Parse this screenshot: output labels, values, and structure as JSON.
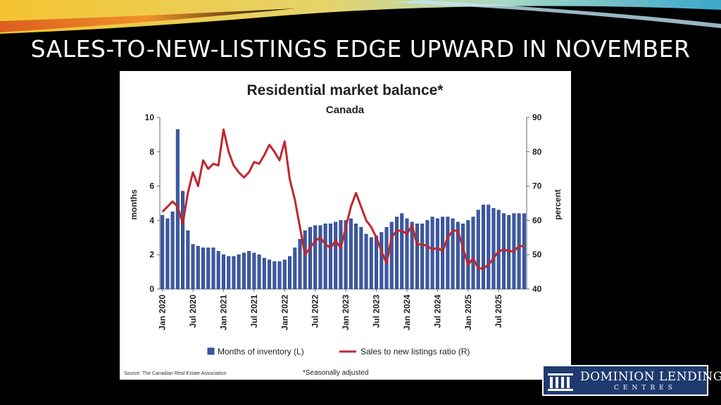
{
  "slide": {
    "title": "SALES-TO-NEW-LISTINGS EDGE UPWARD IN NOVEMBER"
  },
  "chart_data": {
    "type": "bar",
    "title": "Residential market balance*",
    "subtitle": "Canada",
    "ylabel_left": "months",
    "ylabel_right": "percent",
    "ylim_left": [
      0,
      10
    ],
    "ylim_right": [
      40,
      90
    ],
    "yticks_left": [
      "0",
      "2",
      "4",
      "6",
      "8",
      "10"
    ],
    "yticks_right": [
      "40",
      "50",
      "60",
      "70",
      "80",
      "90"
    ],
    "xticks": [
      "Jan 2020",
      "Jul 2020",
      "Jan 2021",
      "Jul 2021",
      "Jan 2022",
      "Jul 2022",
      "Jan 2023",
      "Jul 2023",
      "Jan 2024",
      "Jul 2024",
      "Jan 2025",
      "Jul 2025"
    ],
    "start_month": "Jan 2020",
    "series": [
      {
        "name": "Months of inventory (L)",
        "type": "bar",
        "axis": "left",
        "color": "#3b5aa6",
        "values": [
          4.3,
          4.1,
          4.5,
          9.3,
          5.7,
          3.4,
          2.6,
          2.5,
          2.4,
          2.4,
          2.4,
          2.2,
          2.0,
          1.9,
          1.9,
          2.0,
          2.1,
          2.2,
          2.1,
          2.0,
          1.8,
          1.7,
          1.6,
          1.6,
          1.7,
          1.9,
          2.4,
          2.9,
          3.4,
          3.6,
          3.7,
          3.7,
          3.8,
          3.8,
          3.9,
          4.0,
          4.0,
          4.1,
          3.8,
          3.6,
          3.2,
          3.0,
          3.1,
          3.3,
          3.6,
          3.9,
          4.2,
          4.4,
          4.1,
          3.9,
          3.8,
          3.8,
          4.0,
          4.2,
          4.1,
          4.2,
          4.2,
          4.1,
          3.9,
          3.8,
          4.0,
          4.2,
          4.6,
          4.9,
          4.9,
          4.7,
          4.6,
          4.4,
          4.3,
          4.4,
          4.4,
          4.4
        ]
      },
      {
        "name": "Sales to new listings ratio (R)",
        "type": "line",
        "axis": "right",
        "color": "#c1272d",
        "values": [
          62.5,
          64,
          65.5,
          64,
          59,
          68,
          74,
          70,
          77.5,
          75,
          76.5,
          76,
          86.5,
          80,
          76,
          74,
          72.5,
          74,
          77,
          76.5,
          79,
          82,
          80,
          77.5,
          83,
          72,
          66,
          58,
          50,
          52,
          54,
          55,
          53,
          52,
          54,
          52,
          58,
          64,
          68,
          64,
          60,
          58,
          55,
          51,
          47.5,
          55,
          57,
          57,
          56,
          58.5,
          53,
          53,
          52.5,
          51.5,
          52,
          51,
          55,
          57,
          57,
          52,
          47,
          49,
          46,
          46,
          47,
          49,
          51,
          51.5,
          51,
          51,
          52.5,
          52.5
        ]
      }
    ],
    "legend_position": "bottom",
    "grid": false,
    "source": "Source: The Canadian Real Estate Association",
    "footnote": "*Seasonally adjusted"
  },
  "logo": {
    "word1": "DOMINION LENDING",
    "word2": "CENTRES",
    "bg_color": "#1e3a6e"
  }
}
